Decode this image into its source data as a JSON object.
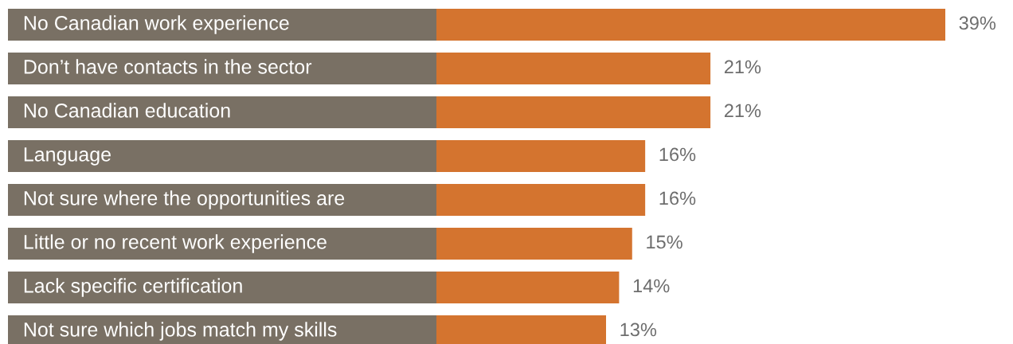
{
  "chart_data": {
    "type": "bar",
    "orientation": "horizontal",
    "categories": [
      "No Canadian work experience",
      "Don’t have contacts in the sector",
      "No Canadian education",
      "Language",
      "Not sure where the opportunities are",
      "Little or no recent work experience",
      "Lack specific certification",
      "Not sure which jobs match my skills"
    ],
    "values": [
      39,
      21,
      21,
      16,
      16,
      15,
      14,
      13
    ],
    "value_labels": [
      "39%",
      "21%",
      "21%",
      "16%",
      "16%",
      "15%",
      "14%",
      "13%"
    ],
    "color": "#d4742f"
  }
}
